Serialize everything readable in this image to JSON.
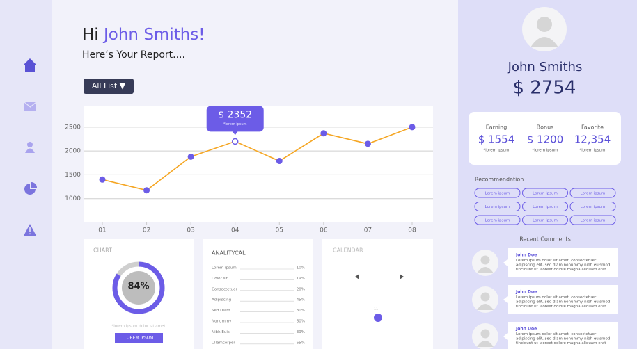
{
  "header": {
    "greeting": "Hi",
    "name": "John Smiths!",
    "subtitle": "Here’s Your Report....",
    "filter": "All List ▼"
  },
  "chart_data": {
    "type": "line",
    "categories": [
      "01",
      "02",
      "03",
      "04",
      "05",
      "06",
      "07",
      "08"
    ],
    "values": [
      1400,
      1175,
      1880,
      2200,
      1790,
      2370,
      2150,
      2500
    ],
    "color": "#f5a623",
    "marker_color": "#6c5ce7",
    "ylim": [
      500,
      2950
    ],
    "yticks": [
      1000,
      1500,
      2000,
      2500
    ],
    "grid": true,
    "annotation": {
      "text": "$ 2352",
      "subtext": "*lorem ipsum"
    }
  },
  "donut": {
    "title": "CHART",
    "value": 84,
    "value_label": "84%",
    "caption": "*lorem ipsum dolor sit amet",
    "button": "LOREM IPSUM"
  },
  "analytical": {
    "title": "ANALITYCAL",
    "rows": [
      [
        "Lorem ipsum",
        "10%"
      ],
      [
        "Dolor sit",
        "19%"
      ],
      [
        "Consectetuer",
        "20%"
      ],
      [
        "Adipiscing",
        "45%"
      ],
      [
        "Sed Diam",
        "30%"
      ],
      [
        "Nonummy",
        "60%"
      ],
      [
        "Nibh Euis",
        "39%"
      ],
      [
        "Ullamcorper",
        "65%"
      ]
    ]
  },
  "calendar": {
    "title": "CALENDAR",
    "day": "11"
  },
  "profile": {
    "name": "John Smiths",
    "balance": "$ 2754",
    "stats": [
      {
        "label": "Earning",
        "value": "$ 1554",
        "note": "*lorem ipsum"
      },
      {
        "label": "Bonus",
        "value": "$ 1200",
        "note": "*lorem ipsum"
      },
      {
        "label": "Favorite",
        "value": "12,354",
        "note": "*lorem ipsum"
      }
    ],
    "recommendation_title": "Recommendation",
    "tags": [
      "Lorem ipsum",
      "Lorem ipsum",
      "Lorem ipsum",
      "Lorem ipsum",
      "Lorem ipsum",
      "Lorem ipsum",
      "Lorem ipsum",
      "Lorem ipsum",
      "Lorem ipsum"
    ],
    "comments_title": "Recent Comments",
    "comments": [
      {
        "author": "John Doe",
        "lines": [
          "Lorem ipsum dolor sit amet, consectetuer",
          "adipiscing elit, sed diam nonummy nibh euismod",
          "tincidunt ut laoreet dolore magna aliquam erat"
        ]
      },
      {
        "author": "John Doe",
        "lines": [
          "Lorem ipsum dolor sit amet, consectetuer",
          "adipiscing elit, sed diam nonummy nibh euismod",
          "tincidunt ut laoreet dolore magna aliquam erat"
        ]
      },
      {
        "author": "John Doe",
        "lines": [
          "Lorem ipsum dolor sit amet, consectetuer",
          "adipiscing elit, sed diam nonummy nibh euismod",
          "tincidunt ut laoreet dolore magna aliquam erat"
        ]
      }
    ]
  }
}
